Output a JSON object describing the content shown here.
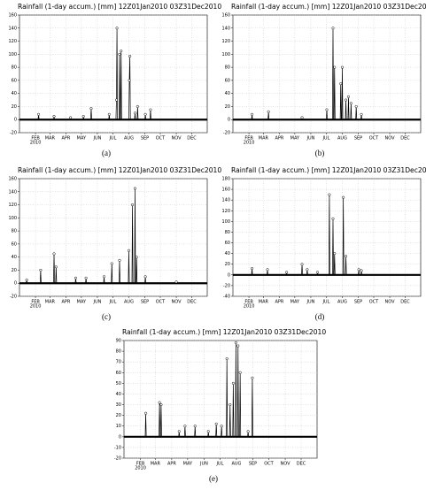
{
  "chart_data": [
    {
      "type": "line",
      "title": "Rainfall (1-day accum.) [mm]  12Z01Jan2010  03Z31Dec2010",
      "caption": "(a)",
      "year_label": "2010",
      "color": "#000000",
      "grid": true,
      "xlim": [
        1,
        365
      ],
      "ylim": [
        -20,
        160
      ],
      "yticks": [
        -20,
        0,
        20,
        40,
        60,
        80,
        100,
        120,
        140,
        160
      ],
      "xticks": [
        {
          "value": 32,
          "label": "FEB"
        },
        {
          "value": 60,
          "label": "MAR"
        },
        {
          "value": 91,
          "label": "APR"
        },
        {
          "value": 121,
          "label": "MAY"
        },
        {
          "value": 152,
          "label": "JUN"
        },
        {
          "value": 182,
          "label": "JUL"
        },
        {
          "value": 213,
          "label": "AUG"
        },
        {
          "value": 244,
          "label": "SEP"
        },
        {
          "value": 274,
          "label": "OCT"
        },
        {
          "value": 305,
          "label": "NOV"
        },
        {
          "value": 335,
          "label": "DEC"
        }
      ],
      "x": [
        1,
        37,
        38,
        39,
        67,
        68,
        69,
        99,
        100,
        101,
        124,
        125,
        126,
        139,
        140,
        141,
        174,
        175,
        176,
        188,
        189,
        190,
        191,
        194,
        195,
        196,
        197,
        198,
        199,
        213,
        214,
        215,
        216,
        224,
        225,
        226,
        229,
        230,
        231,
        244,
        245,
        246,
        254,
        255,
        256,
        365
      ],
      "values": [
        0,
        0,
        8,
        0,
        0,
        5,
        0,
        0,
        3,
        0,
        0,
        5,
        0,
        0,
        17,
        0,
        0,
        8,
        0,
        0,
        30,
        140,
        0,
        0,
        100,
        0,
        0,
        105,
        0,
        0,
        60,
        97,
        0,
        0,
        10,
        0,
        0,
        20,
        0,
        0,
        8,
        0,
        0,
        15,
        0,
        0
      ]
    },
    {
      "type": "line",
      "title": "Rainfall (1-day accum.) [mm]  12Z01Jan2010  03Z31Dec2010",
      "caption": "(b)",
      "year_label": "2010",
      "color": "#000000",
      "grid": true,
      "xlim": [
        1,
        365
      ],
      "ylim": [
        -20,
        160
      ],
      "yticks": [
        -20,
        0,
        20,
        40,
        60,
        80,
        100,
        120,
        140,
        160
      ],
      "xticks": [
        {
          "value": 32,
          "label": "FEB"
        },
        {
          "value": 60,
          "label": "MAR"
        },
        {
          "value": 91,
          "label": "APR"
        },
        {
          "value": 121,
          "label": "MAY"
        },
        {
          "value": 152,
          "label": "JUN"
        },
        {
          "value": 182,
          "label": "JUL"
        },
        {
          "value": 213,
          "label": "AUG"
        },
        {
          "value": 244,
          "label": "SEP"
        },
        {
          "value": 274,
          "label": "OCT"
        },
        {
          "value": 305,
          "label": "NOV"
        },
        {
          "value": 335,
          "label": "DEC"
        }
      ],
      "x": [
        1,
        37,
        38,
        39,
        69,
        70,
        71,
        134,
        135,
        136,
        182,
        183,
        184,
        194,
        195,
        196,
        197,
        198,
        199,
        209,
        210,
        211,
        212,
        213,
        214,
        219,
        220,
        221,
        224,
        225,
        226,
        229,
        230,
        231,
        239,
        240,
        241,
        249,
        250,
        251,
        365
      ],
      "values": [
        0,
        0,
        8,
        0,
        0,
        12,
        0,
        0,
        3,
        0,
        0,
        15,
        0,
        0,
        140,
        0,
        0,
        80,
        0,
        0,
        55,
        0,
        0,
        80,
        0,
        0,
        30,
        0,
        0,
        35,
        0,
        0,
        25,
        0,
        0,
        20,
        0,
        0,
        8,
        0,
        0
      ]
    },
    {
      "type": "line",
      "title": "Rainfall (1-day accum.) [mm]  12Z01Jan2010  03Z31Dec2010",
      "caption": "(c)",
      "year_label": "2010",
      "color": "#000000",
      "grid": true,
      "xlim": [
        1,
        365
      ],
      "ylim": [
        -20,
        160
      ],
      "yticks": [
        -20,
        0,
        20,
        40,
        60,
        80,
        100,
        120,
        140,
        160
      ],
      "xticks": [
        {
          "value": 32,
          "label": "FEB"
        },
        {
          "value": 60,
          "label": "MAR"
        },
        {
          "value": 91,
          "label": "APR"
        },
        {
          "value": 121,
          "label": "MAY"
        },
        {
          "value": 152,
          "label": "JUN"
        },
        {
          "value": 182,
          "label": "JUL"
        },
        {
          "value": 213,
          "label": "AUG"
        },
        {
          "value": 244,
          "label": "SEP"
        },
        {
          "value": 274,
          "label": "OCT"
        },
        {
          "value": 305,
          "label": "NOV"
        },
        {
          "value": 335,
          "label": "DEC"
        }
      ],
      "x": [
        1,
        14,
        15,
        16,
        41,
        42,
        43,
        67,
        68,
        69,
        71,
        72,
        73,
        109,
        110,
        111,
        129,
        130,
        131,
        164,
        165,
        166,
        179,
        180,
        181,
        194,
        195,
        196,
        212,
        213,
        214,
        219,
        220,
        221,
        224,
        225,
        226,
        227,
        228,
        229,
        244,
        245,
        246,
        304,
        305,
        306,
        365
      ],
      "values": [
        0,
        0,
        5,
        0,
        0,
        20,
        0,
        0,
        45,
        0,
        0,
        25,
        0,
        0,
        8,
        0,
        0,
        8,
        0,
        0,
        10,
        0,
        0,
        30,
        0,
        0,
        35,
        0,
        0,
        50,
        0,
        0,
        120,
        0,
        0,
        145,
        0,
        0,
        40,
        0,
        0,
        10,
        0,
        0,
        2,
        0,
        0
      ]
    },
    {
      "type": "line",
      "title": "Rainfall (1-day accum.) [mm]  12Z01Jan2010  03Z31Dec2010",
      "caption": "(d)",
      "year_label": "2010",
      "color": "#000000",
      "grid": true,
      "xlim": [
        1,
        365
      ],
      "ylim": [
        -40,
        180
      ],
      "yticks": [
        -40,
        -20,
        0,
        20,
        40,
        60,
        80,
        100,
        120,
        140,
        160,
        180
      ],
      "xticks": [
        {
          "value": 32,
          "label": "FEB"
        },
        {
          "value": 60,
          "label": "MAR"
        },
        {
          "value": 91,
          "label": "APR"
        },
        {
          "value": 121,
          "label": "MAY"
        },
        {
          "value": 152,
          "label": "JUN"
        },
        {
          "value": 182,
          "label": "JUL"
        },
        {
          "value": 213,
          "label": "AUG"
        },
        {
          "value": 244,
          "label": "SEP"
        },
        {
          "value": 274,
          "label": "OCT"
        },
        {
          "value": 305,
          "label": "NOV"
        },
        {
          "value": 335,
          "label": "DEC"
        }
      ],
      "x": [
        1,
        37,
        38,
        39,
        67,
        68,
        69,
        104,
        105,
        106,
        134,
        135,
        136,
        144,
        145,
        146,
        164,
        165,
        166,
        187,
        188,
        189,
        194,
        195,
        196,
        197,
        198,
        199,
        214,
        215,
        216,
        219,
        220,
        221,
        244,
        245,
        246,
        249,
        250,
        251,
        365
      ],
      "values": [
        0,
        0,
        12,
        0,
        0,
        10,
        0,
        0,
        5,
        0,
        0,
        20,
        0,
        0,
        10,
        0,
        0,
        5,
        0,
        0,
        150,
        0,
        0,
        105,
        0,
        0,
        40,
        0,
        0,
        145,
        0,
        0,
        35,
        0,
        0,
        10,
        0,
        0,
        8,
        0,
        0
      ]
    },
    {
      "type": "line",
      "title": "Rainfall (1-day accum.) [mm]  12Z01Jan2010  03Z31Dec2010",
      "caption": "(e)",
      "year_label": "2010",
      "color": "#000000",
      "grid": true,
      "xlim": [
        1,
        365
      ],
      "ylim": [
        -20,
        90
      ],
      "yticks": [
        -20,
        -10,
        0,
        10,
        20,
        30,
        40,
        50,
        60,
        70,
        80,
        90
      ],
      "xticks": [
        {
          "value": 32,
          "label": "FEB"
        },
        {
          "value": 60,
          "label": "MAR"
        },
        {
          "value": 91,
          "label": "APR"
        },
        {
          "value": 121,
          "label": "MAY"
        },
        {
          "value": 152,
          "label": "JUN"
        },
        {
          "value": 182,
          "label": "JUL"
        },
        {
          "value": 213,
          "label": "AUG"
        },
        {
          "value": 244,
          "label": "SEP"
        },
        {
          "value": 274,
          "label": "OCT"
        },
        {
          "value": 305,
          "label": "NOV"
        },
        {
          "value": 335,
          "label": "DEC"
        }
      ],
      "x": [
        1,
        41,
        42,
        43,
        67,
        68,
        69,
        70,
        71,
        72,
        104,
        105,
        106,
        115,
        116,
        117,
        134,
        135,
        136,
        159,
        160,
        161,
        174,
        175,
        176,
        184,
        185,
        186,
        194,
        195,
        196,
        200,
        201,
        202,
        206,
        207,
        208,
        211,
        212,
        213,
        215,
        216,
        217,
        219,
        220,
        221,
        234,
        235,
        236,
        242,
        243,
        244,
        365
      ],
      "values": [
        0,
        0,
        22,
        0,
        0,
        32,
        0,
        0,
        30,
        0,
        0,
        5,
        0,
        0,
        10,
        0,
        0,
        10,
        0,
        0,
        5,
        0,
        0,
        12,
        0,
        0,
        10,
        0,
        0,
        73,
        0,
        0,
        30,
        0,
        0,
        50,
        0,
        0,
        88,
        0,
        0,
        85,
        0,
        0,
        60,
        0,
        0,
        5,
        0,
        0,
        55,
        0,
        0
      ]
    }
  ]
}
